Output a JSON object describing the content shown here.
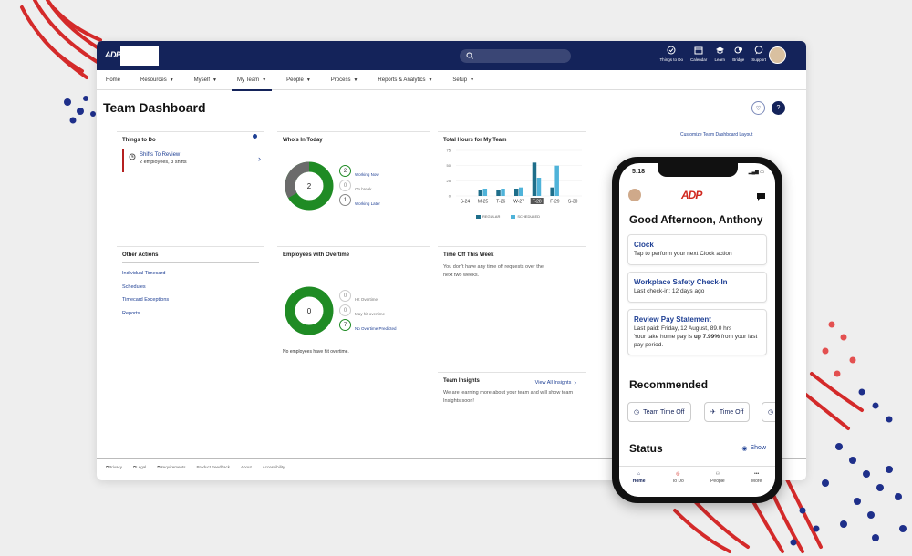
{
  "nav": {
    "logo": "ADP",
    "top_icons": [
      {
        "label": "Things to Do",
        "icon": "tasks-icon"
      },
      {
        "label": "Calendar",
        "icon": "calendar-icon"
      },
      {
        "label": "Learn",
        "icon": "graduation-cap-icon"
      },
      {
        "label": "Bridge",
        "icon": "bridge-icon"
      },
      {
        "label": "Support",
        "icon": "chat-bubble-icon"
      }
    ],
    "menu": [
      "Home",
      "Resources",
      "Myself",
      "My Team",
      "People",
      "Process",
      "Reports & Analytics",
      "Setup"
    ],
    "active_menu": "My Team"
  },
  "page": {
    "title": "Team Dashboard",
    "customize_link": "Customize Team Dashboard Layout"
  },
  "things_to_do": {
    "title": "Things to Do",
    "item_title": "Shifts To Review",
    "item_sub": "2 employees, 3 shifts"
  },
  "whos_in": {
    "title": "Who's In Today",
    "donut_center": "2",
    "rows": [
      {
        "count": "2",
        "label": "Working Now"
      },
      {
        "count": "0",
        "label": "On break"
      },
      {
        "count": "1",
        "label": "Working Later"
      }
    ],
    "segments": [
      {
        "name": "Working Now",
        "value": 2,
        "color": "#1f8b24"
      },
      {
        "name": "Working Later",
        "value": 1,
        "color": "#6b6b6b"
      }
    ]
  },
  "hours_chart": {
    "title": "Total Hours for My Team",
    "legend": [
      "REGULAR",
      "SCHEDULED"
    ]
  },
  "chart_data": {
    "type": "bar",
    "categories": [
      "S-24",
      "M-25",
      "T-26",
      "W-27",
      "T-28",
      "F-29",
      "S-30"
    ],
    "series": [
      {
        "name": "REGULAR",
        "values": [
          0,
          10,
          10,
          12,
          55,
          14,
          0
        ],
        "color": "#1e6e8a"
      },
      {
        "name": "SCHEDULED",
        "values": [
          0,
          12,
          12,
          14,
          30,
          50,
          0
        ],
        "color": "#4fb3d9"
      }
    ],
    "yticks": [
      "75",
      "50",
      "25",
      "0"
    ],
    "ylim": [
      0,
      75
    ],
    "highlight_category": "T-28"
  },
  "other_actions": {
    "title": "Other Actions",
    "links": [
      "Individual Timecard",
      "Schedules",
      "Timecard Exceptions",
      "Reports"
    ]
  },
  "overtime": {
    "title": "Employees with Overtime",
    "donut_center": "0",
    "rows": [
      {
        "count": "0",
        "label": "Hit Overtime"
      },
      {
        "count": "0",
        "label": "May hit overtime"
      },
      {
        "count": "7",
        "label": "No Overtime Predicted"
      }
    ],
    "note": "No employees have hit overtime."
  },
  "time_off": {
    "title": "Time Off This Week",
    "text": "You don't have any time off requests over the next two weeks."
  },
  "insights": {
    "title": "Team Insights",
    "link": "View All Insights",
    "text": "We are learning more about your team and will show team Insights soon!"
  },
  "footer": [
    "Privacy",
    "Legal",
    "Requirements",
    "Product Feedback",
    "About",
    "Accessibility"
  ],
  "phone": {
    "time": "5:18",
    "logo": "ADP",
    "greeting": "Good Afternoon, Anthony",
    "cards": [
      {
        "title": "Clock",
        "sub": "Tap to perform your next Clock action"
      },
      {
        "title": "Workplace Safety Check-In",
        "sub": "Last check-in: 12 days ago"
      }
    ],
    "pay": {
      "title": "Review Pay Statement",
      "line1": "Last paid: Friday, 12 August, 89.0 hrs",
      "line2a": "Your take home pay is ",
      "line2b": "up 7.99%",
      "line2c": " from your last pay period."
    },
    "recommended": "Recommended",
    "pills": [
      "Team Time Off",
      "Time Off"
    ],
    "status": "Status",
    "show": "Show",
    "tabs": [
      "Home",
      "To Do",
      "People",
      "More"
    ]
  },
  "colors": {
    "brand_navy": "#14235a",
    "adp_red": "#d0271d",
    "green": "#1f8b24",
    "link_blue": "#1e3f94"
  }
}
